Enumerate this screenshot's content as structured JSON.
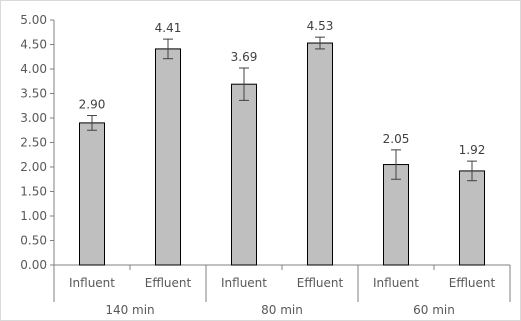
{
  "chart_data": {
    "type": "bar",
    "categories": [
      "Influent",
      "Effluent",
      "Influent",
      "Effluent",
      "Influent",
      "Effluent"
    ],
    "groups": [
      {
        "label": "140 min",
        "span": 2
      },
      {
        "label": "80 min",
        "span": 2
      },
      {
        "label": "60 min",
        "span": 2
      }
    ],
    "values": [
      2.9,
      4.41,
      3.69,
      4.53,
      2.05,
      1.92
    ],
    "data_labels": [
      "2.90",
      "4.41",
      "3.69",
      "4.53",
      "2.05",
      "1.92"
    ],
    "error": [
      0.15,
      0.2,
      0.33,
      0.12,
      0.3,
      0.2
    ],
    "ylim": [
      0,
      5
    ],
    "yticks": [
      "0.00",
      "0.50",
      "1.00",
      "1.50",
      "2.00",
      "2.50",
      "3.00",
      "3.50",
      "4.00",
      "4.50",
      "5.00"
    ],
    "title": "",
    "xlabel": "",
    "ylabel": "",
    "grid": false,
    "legend": "none",
    "colors": {
      "bar": "#bfbfbf",
      "bar_edge": "#000000",
      "axis": "#808080",
      "error": "#404040"
    }
  }
}
